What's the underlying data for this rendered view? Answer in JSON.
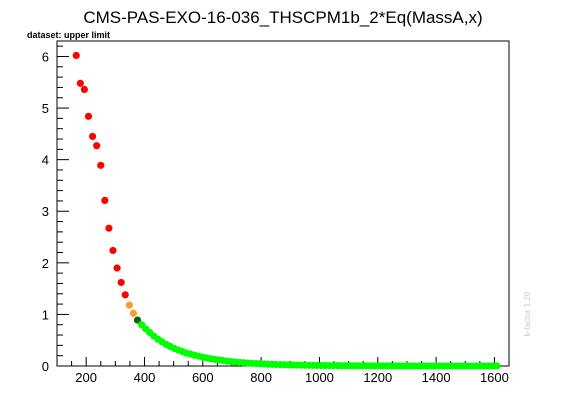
{
  "chart_data": {
    "type": "scatter",
    "title": "CMS-PAS-EXO-16-036_THSCPM1b_2*Eq(MassA,x)",
    "dataset_label": "dataset: upper limit",
    "side_note": "k-factor 1.20",
    "xlabel": "",
    "ylabel": "",
    "xlim": [
      100,
      1650
    ],
    "ylim": [
      0,
      6.3
    ],
    "x_ticks": [
      200,
      400,
      600,
      800,
      1000,
      1200,
      1400,
      1600
    ],
    "y_ticks": [
      0,
      1,
      2,
      3,
      4,
      5,
      6
    ],
    "grid": false,
    "colors": {
      "red": "#ff0000",
      "orange": "#ff9933",
      "darkgreen": "#006600",
      "green": "#00ff00"
    },
    "series": [
      {
        "color": "red",
        "x": [
          166,
          180,
          194,
          208,
          222,
          236,
          250,
          264,
          278,
          292,
          306,
          320,
          334
        ],
        "y": [
          6.02,
          5.48,
          5.36,
          4.84,
          4.45,
          4.27,
          3.89,
          3.21,
          2.67,
          2.24,
          1.9,
          1.62,
          1.38
        ]
      },
      {
        "color": "orange",
        "x": [
          348,
          362
        ],
        "y": [
          1.18,
          1.02
        ]
      },
      {
        "color": "darkgreen",
        "x": [
          376
        ],
        "y": [
          0.89
        ]
      },
      {
        "color": "green",
        "x": [
          390,
          404,
          418,
          432,
          446,
          460,
          474,
          488,
          502,
          516,
          530,
          544,
          558,
          572,
          586,
          600,
          614,
          628,
          642,
          656,
          670,
          684,
          698,
          712,
          726,
          740,
          754,
          768,
          782,
          796,
          810,
          824,
          838,
          852,
          866,
          880,
          894,
          908,
          922,
          936,
          950,
          964,
          978,
          992,
          1006,
          1020,
          1034,
          1048,
          1062,
          1076,
          1090,
          1104,
          1118,
          1132,
          1146,
          1160,
          1174,
          1188,
          1202,
          1216,
          1230,
          1244,
          1258,
          1272,
          1286,
          1300,
          1314,
          1328,
          1342,
          1356,
          1370,
          1384,
          1398,
          1412,
          1426,
          1440,
          1454,
          1468,
          1482,
          1496,
          1510,
          1524,
          1538,
          1552,
          1566,
          1580,
          1594,
          1608
        ],
        "y": [
          0.8,
          0.72,
          0.65,
          0.58,
          0.52,
          0.47,
          0.42,
          0.38,
          0.34,
          0.31,
          0.28,
          0.25,
          0.23,
          0.21,
          0.19,
          0.17,
          0.155,
          0.14,
          0.127,
          0.115,
          0.104,
          0.094,
          0.085,
          0.077,
          0.07,
          0.063,
          0.057,
          0.052,
          0.047,
          0.043,
          0.039,
          0.035,
          0.032,
          0.029,
          0.026,
          0.024,
          0.022,
          0.02,
          0.018,
          0.016,
          0.015,
          0.013,
          0.012,
          0.011,
          0.01,
          0.009,
          0.008,
          0.008,
          0.007,
          0.006,
          0.006,
          0.005,
          0.005,
          0.004,
          0.004,
          0.004,
          0.003,
          0.003,
          0.003,
          0.003,
          0.002,
          0.002,
          0.002,
          0.002,
          0.002,
          0.002,
          0.001,
          0.001,
          0.001,
          0.001,
          0.001,
          0.001,
          0.001,
          0.001,
          0.001,
          0.001,
          0.001,
          0.001,
          0.001,
          0.001,
          0.001,
          0.001,
          0.001,
          0.001,
          0.001,
          0.001,
          0.001,
          0.001
        ]
      }
    ]
  }
}
